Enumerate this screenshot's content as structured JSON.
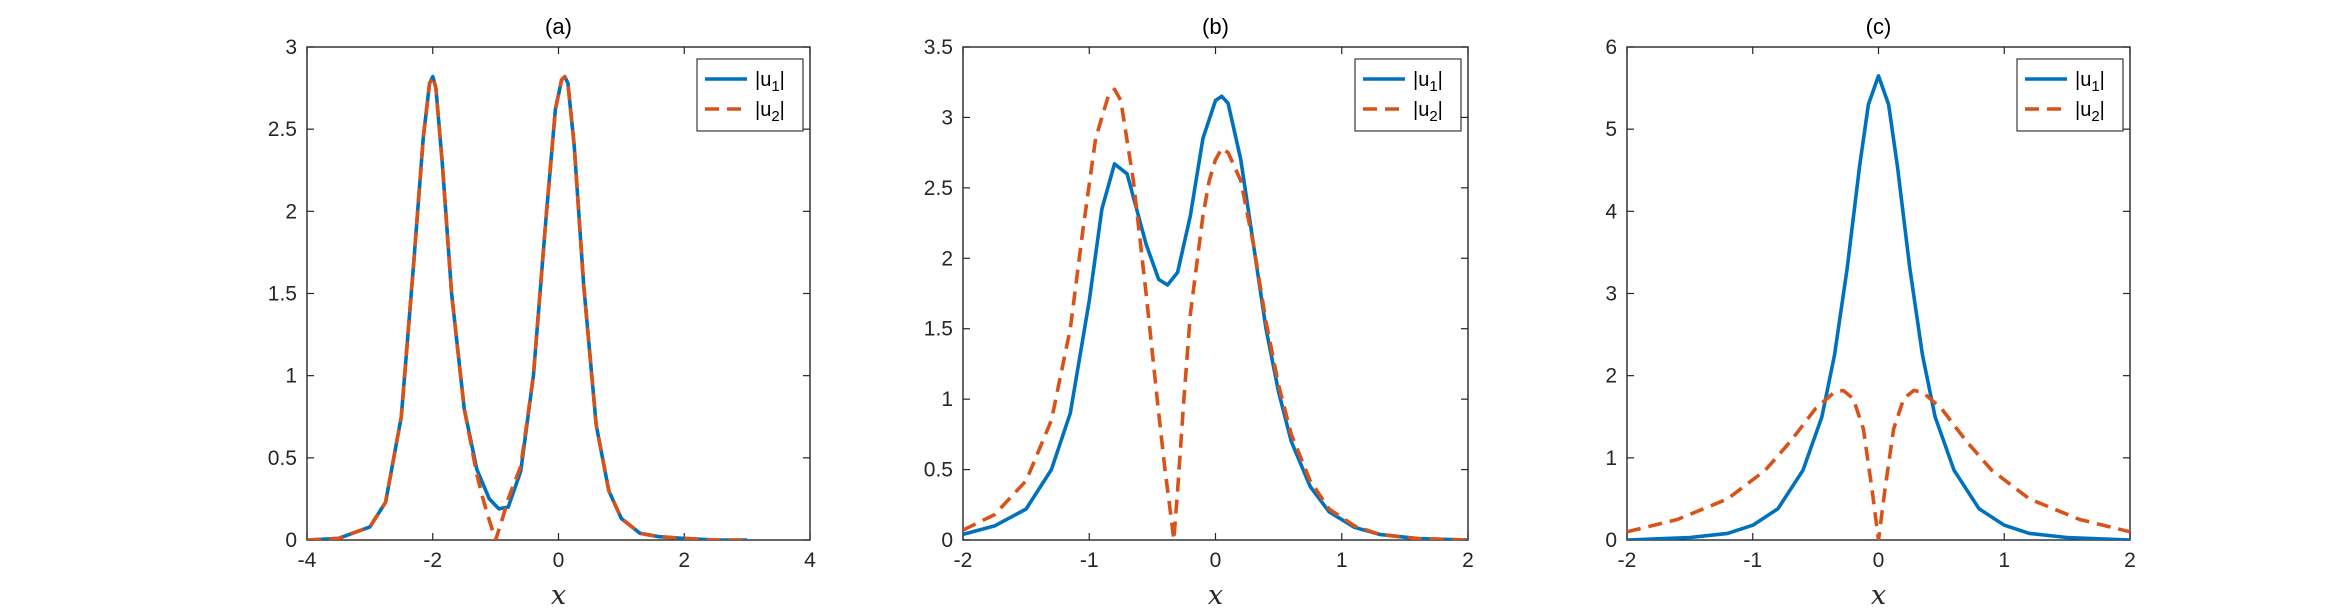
{
  "chart_data": [
    {
      "type": "line",
      "title": "(a)",
      "xlabel": "x",
      "ylabel": "",
      "xlim": [
        -4,
        4
      ],
      "ylim": [
        0,
        3
      ],
      "xticks": [
        "-4",
        "-2",
        "0",
        "2",
        "4"
      ],
      "yticks": [
        "0",
        "0.5",
        "1",
        "1.5",
        "2",
        "2.5",
        "3"
      ],
      "legend": {
        "placement": "top-right",
        "entries": [
          "|u1|",
          "|u2|"
        ]
      },
      "series": [
        {
          "name": "|u1|",
          "style": "solid",
          "color": "#0072BD",
          "x": [
            -4.0,
            -3.5,
            -3.0,
            -2.75,
            -2.5,
            -2.3,
            -2.15,
            -2.05,
            -2.0,
            -1.95,
            -1.85,
            -1.7,
            -1.5,
            -1.3,
            -1.1,
            -0.95,
            -0.8,
            -0.6,
            -0.4,
            -0.2,
            -0.05,
            0.05,
            0.1,
            0.15,
            0.25,
            0.4,
            0.6,
            0.8,
            1.0,
            1.3,
            1.6,
            2.0,
            2.5,
            3.0
          ],
          "y": [
            0.0,
            0.01,
            0.08,
            0.23,
            0.75,
            1.7,
            2.45,
            2.78,
            2.82,
            2.75,
            2.3,
            1.5,
            0.8,
            0.43,
            0.25,
            0.19,
            0.2,
            0.42,
            1.0,
            1.95,
            2.62,
            2.8,
            2.82,
            2.78,
            2.4,
            1.55,
            0.7,
            0.3,
            0.13,
            0.04,
            0.02,
            0.01,
            0.0,
            0.0
          ]
        },
        {
          "name": "|u2|",
          "style": "dashed",
          "color": "#D95319",
          "x": [
            -4.0,
            -3.5,
            -3.0,
            -2.75,
            -2.5,
            -2.3,
            -2.15,
            -2.05,
            -2.0,
            -1.95,
            -1.85,
            -1.7,
            -1.5,
            -1.3,
            -1.2,
            -1.1,
            -1.0,
            -0.9,
            -0.8,
            -0.6,
            -0.4,
            -0.2,
            -0.05,
            0.05,
            0.1,
            0.15,
            0.25,
            0.4,
            0.6,
            0.8,
            1.0,
            1.3,
            1.6,
            2.0,
            2.5,
            3.0
          ],
          "y": [
            0.0,
            0.01,
            0.08,
            0.23,
            0.75,
            1.7,
            2.45,
            2.78,
            2.82,
            2.75,
            2.3,
            1.5,
            0.8,
            0.4,
            0.25,
            0.12,
            0.0,
            0.12,
            0.25,
            0.45,
            1.0,
            1.95,
            2.62,
            2.8,
            2.82,
            2.78,
            2.4,
            1.55,
            0.7,
            0.3,
            0.13,
            0.04,
            0.02,
            0.01,
            0.0,
            0.0
          ]
        }
      ]
    },
    {
      "type": "line",
      "title": "(b)",
      "xlabel": "x",
      "ylabel": "",
      "xlim": [
        -2,
        2
      ],
      "ylim": [
        0,
        3.5
      ],
      "xticks": [
        "-2",
        "-1",
        "0",
        "1",
        "2"
      ],
      "yticks": [
        "0",
        "0.5",
        "1",
        "1.5",
        "2",
        "2.5",
        "3",
        "3.5"
      ],
      "legend": {
        "placement": "top-right",
        "entries": [
          "|u1|",
          "|u2|"
        ]
      },
      "series": [
        {
          "name": "|u1|",
          "style": "solid",
          "color": "#0072BD",
          "x": [
            -2.0,
            -1.75,
            -1.5,
            -1.3,
            -1.15,
            -1.0,
            -0.9,
            -0.8,
            -0.7,
            -0.55,
            -0.45,
            -0.38,
            -0.3,
            -0.2,
            -0.1,
            0.0,
            0.05,
            0.1,
            0.2,
            0.3,
            0.4,
            0.5,
            0.6,
            0.75,
            0.9,
            1.1,
            1.3,
            1.6,
            2.0
          ],
          "y": [
            0.04,
            0.1,
            0.22,
            0.5,
            0.9,
            1.7,
            2.35,
            2.67,
            2.6,
            2.1,
            1.85,
            1.81,
            1.9,
            2.3,
            2.85,
            3.12,
            3.15,
            3.1,
            2.7,
            2.1,
            1.5,
            1.05,
            0.7,
            0.38,
            0.2,
            0.09,
            0.04,
            0.01,
            0.0
          ]
        },
        {
          "name": "|u2|",
          "style": "dashed",
          "color": "#D95319",
          "x": [
            -2.0,
            -1.75,
            -1.5,
            -1.3,
            -1.15,
            -1.05,
            -0.95,
            -0.85,
            -0.8,
            -0.75,
            -0.65,
            -0.55,
            -0.45,
            -0.4,
            -0.35,
            -0.33,
            -0.3,
            -0.25,
            -0.2,
            -0.1,
            -0.05,
            0.0,
            0.05,
            0.1,
            0.2,
            0.3,
            0.4,
            0.5,
            0.6,
            0.75,
            0.9,
            1.1,
            1.3,
            1.6,
            2.0
          ],
          "y": [
            0.07,
            0.18,
            0.42,
            0.85,
            1.5,
            2.2,
            2.85,
            3.15,
            3.2,
            3.12,
            2.55,
            1.75,
            0.9,
            0.5,
            0.15,
            0.0,
            0.35,
            1.0,
            1.6,
            2.3,
            2.55,
            2.7,
            2.78,
            2.75,
            2.55,
            2.1,
            1.55,
            1.1,
            0.75,
            0.42,
            0.22,
            0.1,
            0.04,
            0.01,
            0.0
          ]
        }
      ]
    },
    {
      "type": "line",
      "title": "(c)",
      "xlabel": "x",
      "ylabel": "",
      "xlim": [
        -2,
        2
      ],
      "ylim": [
        0,
        6
      ],
      "xticks": [
        "-2",
        "-1",
        "0",
        "1",
        "2"
      ],
      "yticks": [
        "0",
        "1",
        "2",
        "3",
        "4",
        "5",
        "6"
      ],
      "legend": {
        "placement": "top-right",
        "entries": [
          "|u1|",
          "|u2|"
        ]
      },
      "series": [
        {
          "name": "|u1|",
          "style": "solid",
          "color": "#0072BD",
          "x": [
            -2.0,
            -1.5,
            -1.2,
            -1.0,
            -0.8,
            -0.6,
            -0.45,
            -0.35,
            -0.25,
            -0.15,
            -0.08,
            0.0,
            0.08,
            0.15,
            0.25,
            0.35,
            0.45,
            0.6,
            0.8,
            1.0,
            1.2,
            1.5,
            2.0
          ],
          "y": [
            0.0,
            0.03,
            0.08,
            0.18,
            0.38,
            0.85,
            1.5,
            2.25,
            3.3,
            4.55,
            5.3,
            5.65,
            5.3,
            4.55,
            3.3,
            2.25,
            1.5,
            0.85,
            0.38,
            0.18,
            0.08,
            0.03,
            0.0
          ]
        },
        {
          "name": "|u2|",
          "style": "dashed",
          "color": "#D95319",
          "x": [
            -2.0,
            -1.6,
            -1.2,
            -0.9,
            -0.7,
            -0.5,
            -0.35,
            -0.28,
            -0.2,
            -0.12,
            -0.05,
            0.0,
            0.05,
            0.12,
            0.2,
            0.28,
            0.35,
            0.5,
            0.7,
            0.9,
            1.2,
            1.6,
            2.0
          ],
          "y": [
            0.1,
            0.25,
            0.5,
            0.85,
            1.2,
            1.6,
            1.8,
            1.82,
            1.72,
            1.35,
            0.6,
            0.0,
            0.6,
            1.35,
            1.72,
            1.82,
            1.8,
            1.6,
            1.2,
            0.85,
            0.5,
            0.25,
            0.1
          ]
        }
      ]
    }
  ]
}
